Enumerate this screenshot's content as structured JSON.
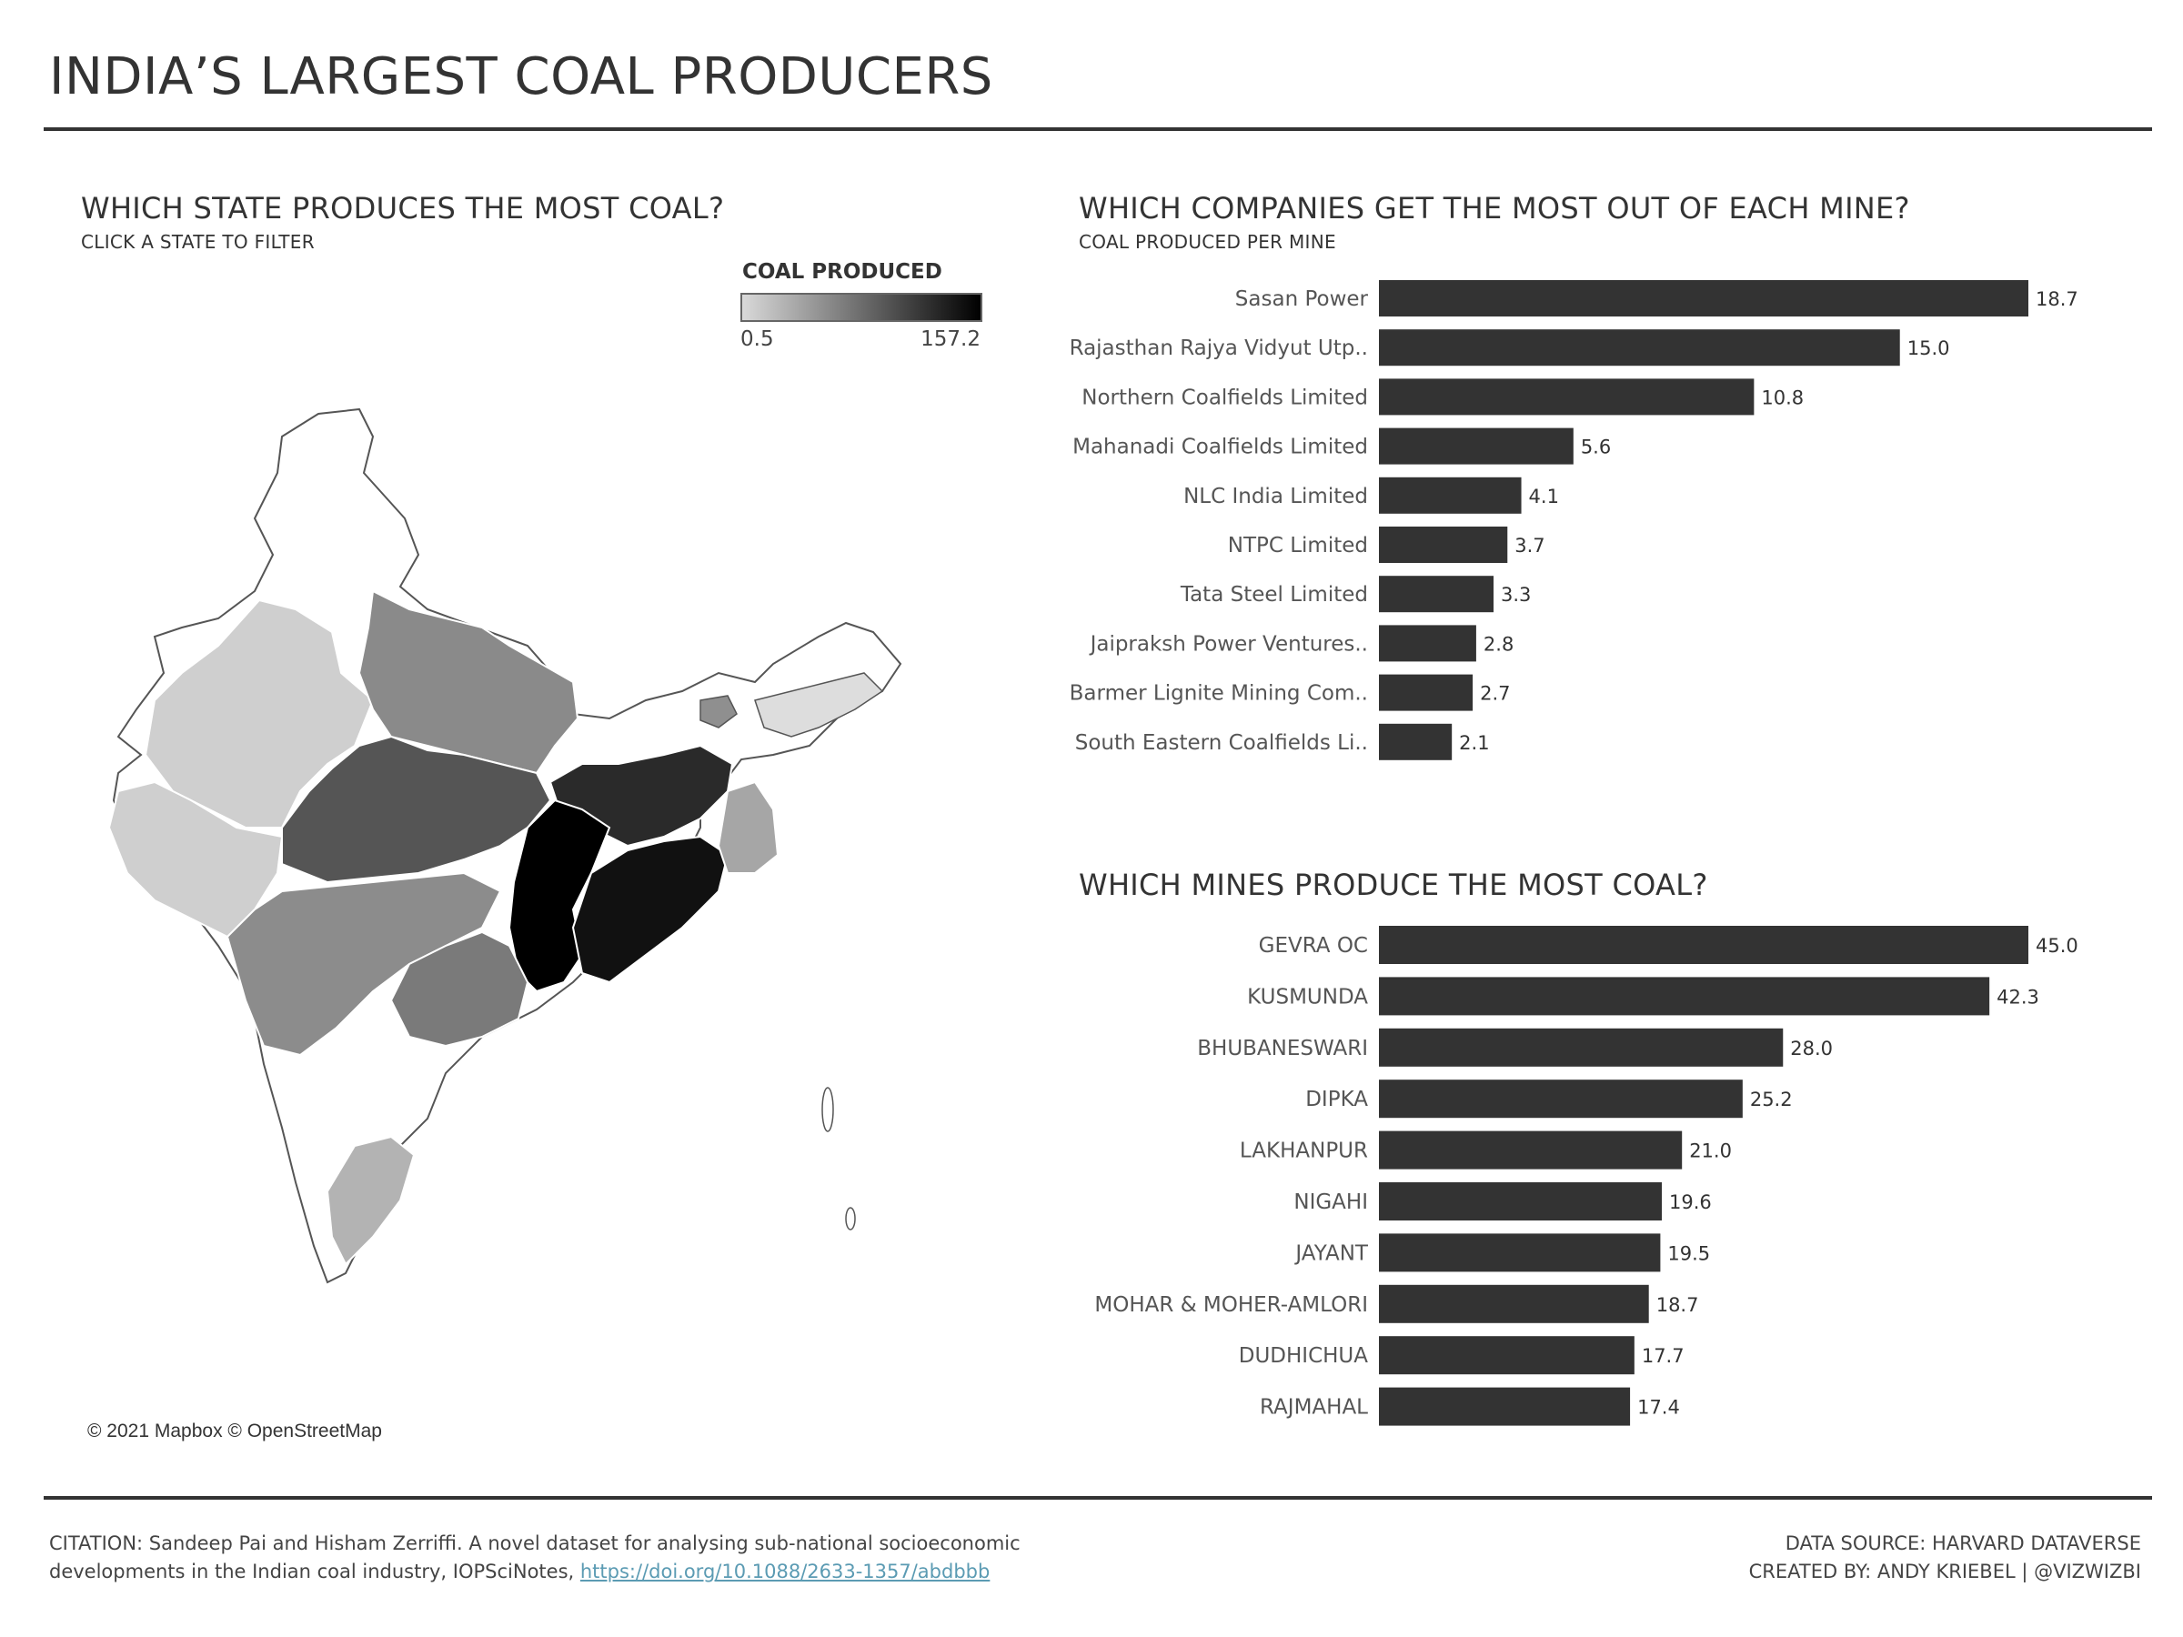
{
  "title": "INDIA’S LARGEST COAL PRODUCERS",
  "map_section": {
    "title": "WHICH STATE PRODUCES THE MOST COAL?",
    "subtitle": "CLICK A STATE TO FILTER",
    "legend": {
      "title": "COAL PRODUCED",
      "min_label": "0.5",
      "max_label": "157.2",
      "min_value": 0.5,
      "max_value": 157.2,
      "color_low": "#d9d9d9",
      "color_high": "#000000"
    },
    "attribution": "© 2021 Mapbox © OpenStreetMap"
  },
  "companies_section": {
    "title": "WHICH COMPANIES GET THE MOST OUT OF EACH MINE?",
    "subtitle": "COAL PRODUCED PER MINE"
  },
  "mines_section": {
    "title": "WHICH MINES PRODUCE THE MOST COAL?"
  },
  "chart_data": [
    {
      "type": "bar",
      "orientation": "horizontal",
      "title": "WHICH COMPANIES GET THE MOST OUT OF EACH MINE?",
      "subtitle": "COAL PRODUCED PER MINE",
      "categories": [
        "Sasan Power",
        "Rajasthan Rajya Vidyut Utp..",
        "Northern Coalfields Limited",
        "Mahanadi Coalfields Limited",
        "NLC India Limited",
        "NTPC Limited",
        "Tata Steel Limited",
        "Jaipraksh Power Ventures..",
        "Barmer Lignite Mining Com..",
        "South Eastern Coalfields Li.."
      ],
      "values": [
        18.7,
        15.0,
        10.8,
        5.6,
        4.1,
        3.7,
        3.3,
        2.8,
        2.7,
        2.1
      ],
      "value_labels": [
        "18.7",
        "15.0",
        "10.8",
        "5.6",
        "4.1",
        "3.7",
        "3.3",
        "2.8",
        "2.7",
        "2.1"
      ],
      "xlim": [
        0,
        18.7
      ],
      "bar_color": "#333333"
    },
    {
      "type": "bar",
      "orientation": "horizontal",
      "title": "WHICH MINES PRODUCE THE MOST COAL?",
      "categories": [
        "GEVRA OC",
        "KUSMUNDA",
        "BHUBANESWARI",
        "DIPKA",
        "LAKHANPUR",
        "NIGAHI",
        "JAYANT",
        "MOHAR & MOHER-AMLORI",
        "DUDHICHUA",
        "RAJMAHAL"
      ],
      "values": [
        45.0,
        42.3,
        28.0,
        25.2,
        21.0,
        19.6,
        19.5,
        18.7,
        17.7,
        17.4
      ],
      "value_labels": [
        "45.0",
        "42.3",
        "28.0",
        "25.2",
        "21.0",
        "19.6",
        "19.5",
        "18.7",
        "17.7",
        "17.4"
      ],
      "xlim": [
        0,
        45.0
      ],
      "bar_color": "#333333"
    }
  ],
  "footer": {
    "citation_line1": "CITATION: Sandeep Pai and Hisham Zerriffi. A novel dataset for analysing sub-national socioeconomic",
    "citation_line2": "developments in the Indian coal industry, IOPSciNotes, ",
    "citation_link": "https://doi.org/10.1088/2633-1357/abdbbb",
    "data_source": "DATA SOURCE: HARVARD DATAVERSE",
    "created_by": "CREATED BY: ANDY KRIEBEL | @VIZWIZBI"
  }
}
